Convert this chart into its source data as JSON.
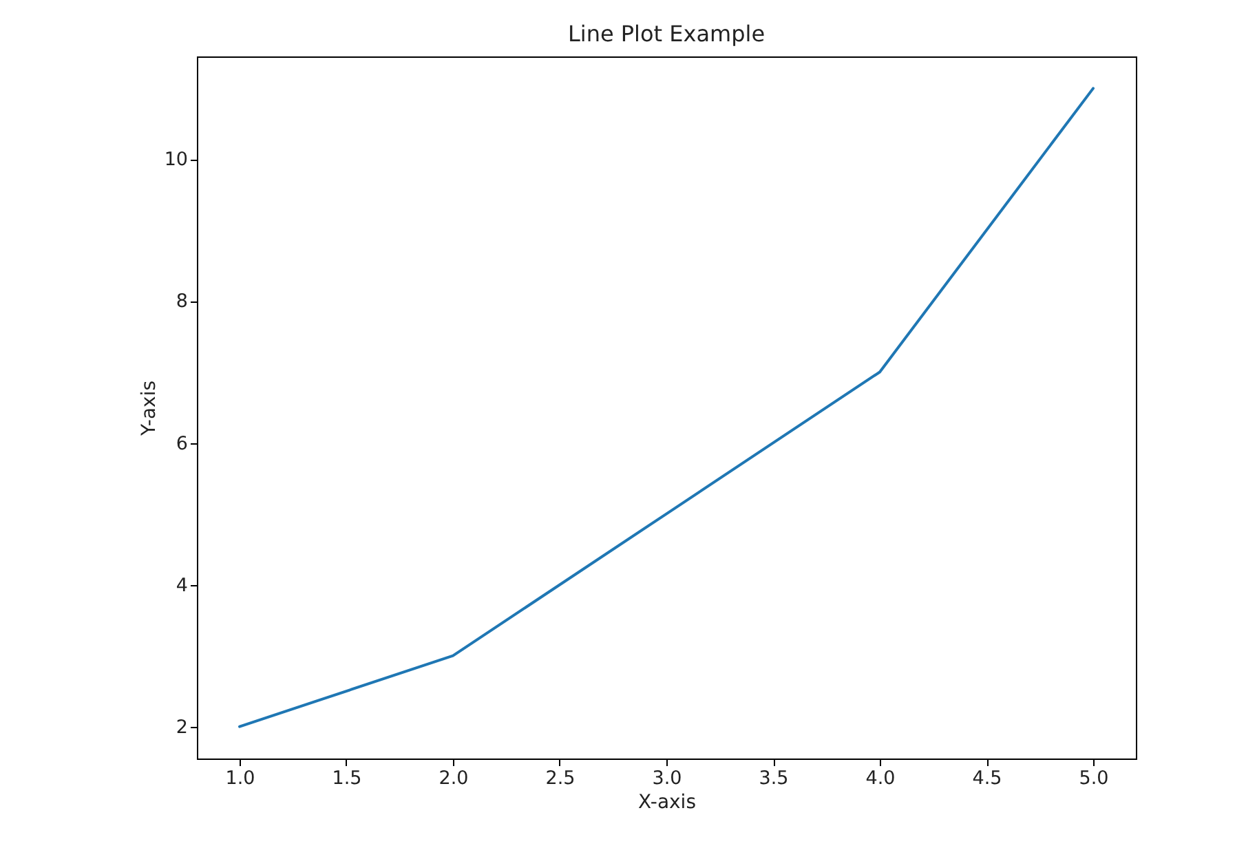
{
  "chart_data": {
    "type": "line",
    "title": "Line Plot Example",
    "xlabel": "X-axis",
    "ylabel": "Y-axis",
    "x": [
      1,
      2,
      3,
      4,
      5
    ],
    "series": [
      {
        "color": "#1f77b4",
        "values": [
          2,
          3,
          5,
          7,
          11
        ]
      }
    ],
    "xlim": [
      0.8,
      5.2
    ],
    "ylim": [
      1.55,
      11.45
    ],
    "xticks": [
      {
        "value": 1,
        "label": "1.0"
      },
      {
        "value": 1.5,
        "label": "1.5"
      },
      {
        "value": 2,
        "label": "2.0"
      },
      {
        "value": 2.5,
        "label": "2.5"
      },
      {
        "value": 3,
        "label": "3.0"
      },
      {
        "value": 3.5,
        "label": "3.5"
      },
      {
        "value": 4,
        "label": "4.0"
      },
      {
        "value": 4.5,
        "label": "4.5"
      },
      {
        "value": 5,
        "label": "5.0"
      }
    ],
    "yticks": [
      2,
      4,
      6,
      8,
      10
    ],
    "line_style": "solid"
  }
}
